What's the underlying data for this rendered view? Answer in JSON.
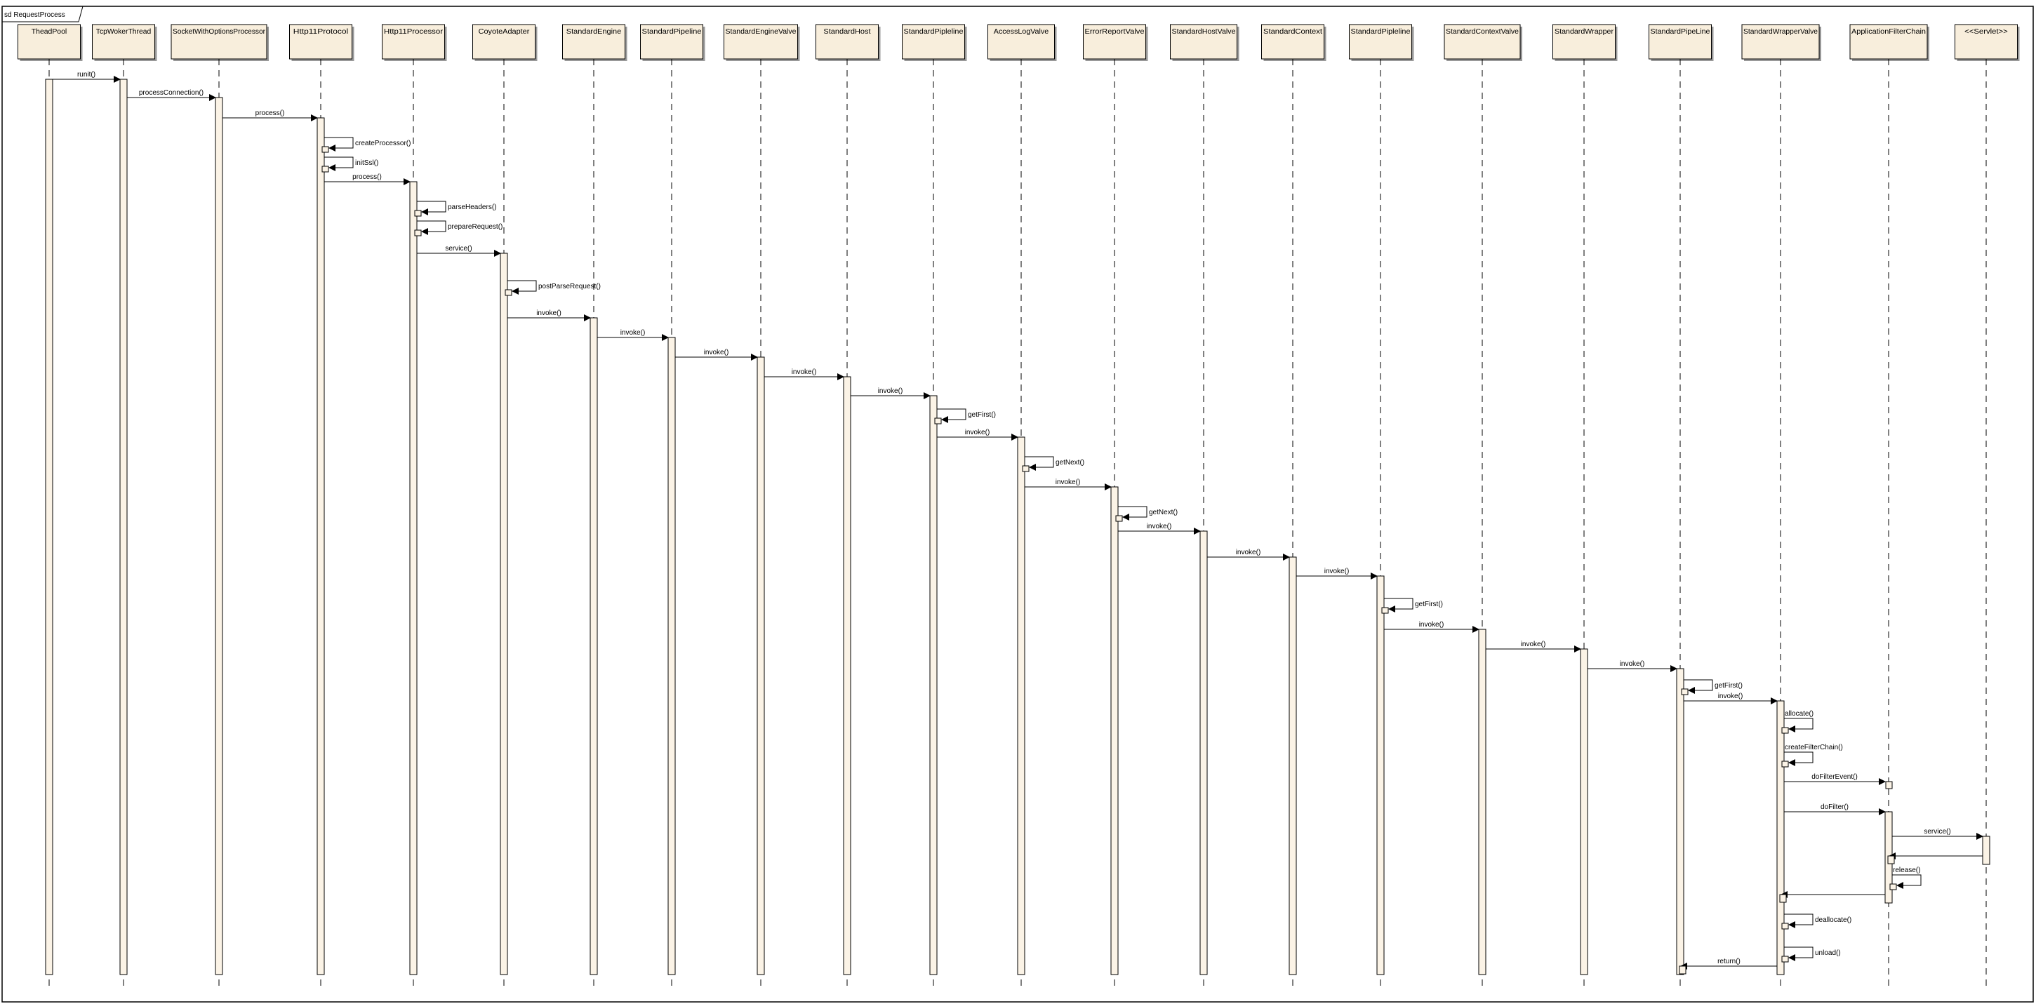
{
  "frame": {
    "title": "sd RequestProcess"
  },
  "colors": {
    "box_fill": "#f8eedc",
    "box_shade": "#e9dcc3",
    "activation_fill": "#fbf3e6",
    "line": "#000000"
  },
  "lifelines": [
    "TheadPool",
    "TcpWokerThread",
    "SocketWithOptionsProcessor",
    "Http11Protocol",
    "Http11Processor",
    "CoyoteAdapter",
    "StandardEngine",
    "StandardPipeline",
    "StandardEngineValve",
    "StandardHost",
    "StandardPipleline",
    "AccessLogValve",
    "ErrorReportValve",
    "StandardHostValve",
    "StandardContext",
    "StandardPipleline",
    "StandardContextValve",
    "StandardWrapper",
    "StandardPipeLine",
    "StandardWrapperValve",
    "ApplicationFilterChain",
    "<<Servlet>>"
  ],
  "messages": [
    {
      "from": 0,
      "to": 1,
      "label": "runit()"
    },
    {
      "from": 1,
      "to": 2,
      "label": "processConnection()"
    },
    {
      "from": 2,
      "to": 3,
      "label": "process()"
    },
    {
      "from": 3,
      "to": 3,
      "label": "createProcessor()"
    },
    {
      "from": 3,
      "to": 3,
      "label": "initSsl()"
    },
    {
      "from": 3,
      "to": 4,
      "label": "process()"
    },
    {
      "from": 4,
      "to": 4,
      "label": "parseHeaders()"
    },
    {
      "from": 4,
      "to": 4,
      "label": "prepareRequest()"
    },
    {
      "from": 4,
      "to": 5,
      "label": "service()"
    },
    {
      "from": 5,
      "to": 5,
      "label": "postParseRequest()"
    },
    {
      "from": 5,
      "to": 6,
      "label": "invoke()"
    },
    {
      "from": 6,
      "to": 7,
      "label": "invoke()"
    },
    {
      "from": 7,
      "to": 8,
      "label": "invoke()"
    },
    {
      "from": 8,
      "to": 9,
      "label": "invoke()"
    },
    {
      "from": 9,
      "to": 10,
      "label": "invoke()"
    },
    {
      "from": 10,
      "to": 10,
      "label": "getFirst()"
    },
    {
      "from": 10,
      "to": 11,
      "label": "invoke()"
    },
    {
      "from": 11,
      "to": 11,
      "label": "getNext()"
    },
    {
      "from": 11,
      "to": 12,
      "label": "invoke()"
    },
    {
      "from": 12,
      "to": 12,
      "label": "getNext()"
    },
    {
      "from": 12,
      "to": 13,
      "label": "invoke()"
    },
    {
      "from": 13,
      "to": 14,
      "label": "invoke()"
    },
    {
      "from": 14,
      "to": 15,
      "label": "invoke()"
    },
    {
      "from": 15,
      "to": 15,
      "label": "getFirst()"
    },
    {
      "from": 15,
      "to": 16,
      "label": "invoke()"
    },
    {
      "from": 16,
      "to": 17,
      "label": "invoke()"
    },
    {
      "from": 17,
      "to": 18,
      "label": "invoke()"
    },
    {
      "from": 18,
      "to": 18,
      "label": "getFirst()"
    },
    {
      "from": 18,
      "to": 19,
      "label": "invoke()"
    },
    {
      "from": 19,
      "to": 19,
      "label": "allocate()"
    },
    {
      "from": 19,
      "to": 19,
      "label": "createFilterChain()"
    },
    {
      "from": 19,
      "to": 20,
      "label": "doFilterEvent()"
    },
    {
      "from": 19,
      "to": 20,
      "label": "doFilter()"
    },
    {
      "from": 20,
      "to": 21,
      "label": "service()"
    },
    {
      "from": 21,
      "to": 20,
      "label": ""
    },
    {
      "from": 20,
      "to": 20,
      "label": "release()"
    },
    {
      "from": 20,
      "to": 19,
      "label": ""
    },
    {
      "from": 19,
      "to": 19,
      "label": "deallocate()"
    },
    {
      "from": 19,
      "to": 19,
      "label": "unload()"
    },
    {
      "from": 19,
      "to": 18,
      "label": "return()"
    }
  ]
}
